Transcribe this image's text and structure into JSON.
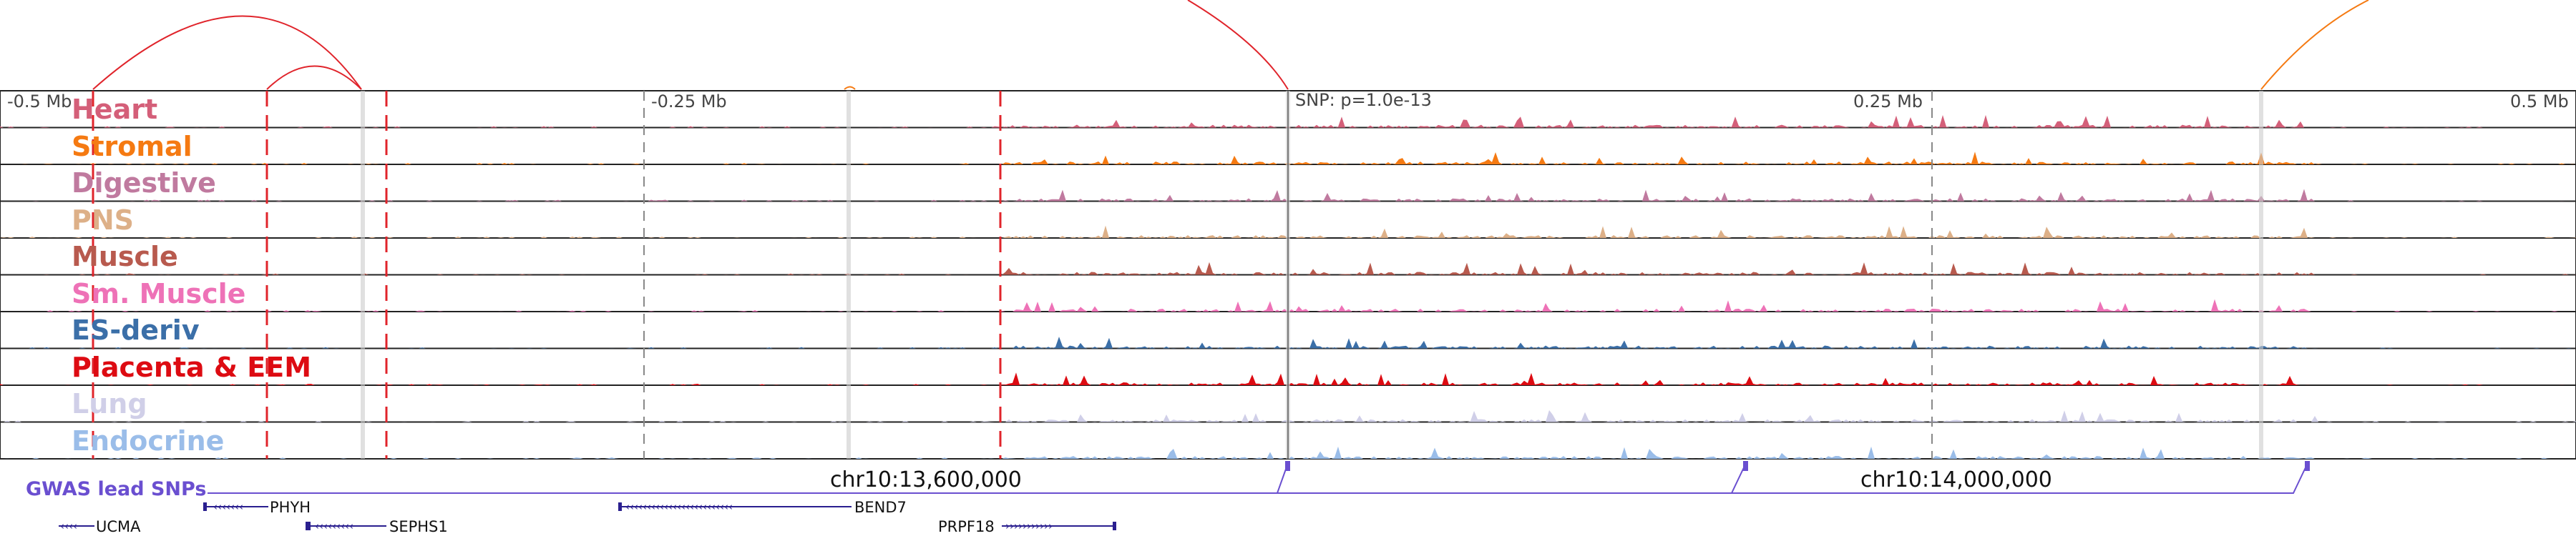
{
  "colors": {
    "heart": "#d45f79",
    "stromal": "#f57a12",
    "digestive": "#c07a9f",
    "pns": "#ddb088",
    "muscle": "#b85a4e",
    "sm_muscle": "#ee72b7",
    "es_deriv": "#3b6fa8",
    "placenta": "#dd0b12",
    "lung": "#d0cfe8",
    "endocrine": "#9abde9",
    "gwas": "#6a4fd0",
    "snp_line": "#e0242b",
    "highlight": "#cccccc"
  },
  "axis": {
    "ticks": [
      {
        "label": "-0.5 Mb",
        "pos": -0.5
      },
      {
        "label": "-0.25 Mb",
        "pos": -0.25
      },
      {
        "label": "SNP: p=1.0e-13",
        "pos": 0.0
      },
      {
        "label": "0.25 Mb",
        "pos": 0.25
      },
      {
        "label": "0.5 Mb",
        "pos": 0.5
      }
    ]
  },
  "tracks": [
    {
      "key": "heart",
      "label": "Heart"
    },
    {
      "key": "stromal",
      "label": "Stromal"
    },
    {
      "key": "digestive",
      "label": "Digestive"
    },
    {
      "key": "pns",
      "label": "PNS"
    },
    {
      "key": "muscle",
      "label": "Muscle"
    },
    {
      "key": "sm_muscle",
      "label": "Sm. Muscle"
    },
    {
      "key": "es_deriv",
      "label": "ES-deriv"
    },
    {
      "key": "placenta",
      "label": "Placenta & EEM"
    },
    {
      "key": "lung",
      "label": "Lung"
    },
    {
      "key": "endocrine",
      "label": "Endocrine"
    }
  ],
  "gwas": {
    "title": "GWAS lead SNPs",
    "coords": [
      "chr10:13,600,000",
      "chr10:14,000,000"
    ]
  },
  "genes": [
    {
      "name": "PHYH",
      "strand": "-"
    },
    {
      "name": "UCMA",
      "strand": "-"
    },
    {
      "name": "SEPHS1",
      "strand": "-"
    },
    {
      "name": "BEND7",
      "strand": "-"
    },
    {
      "name": "PRPF18",
      "strand": "+"
    }
  ]
}
